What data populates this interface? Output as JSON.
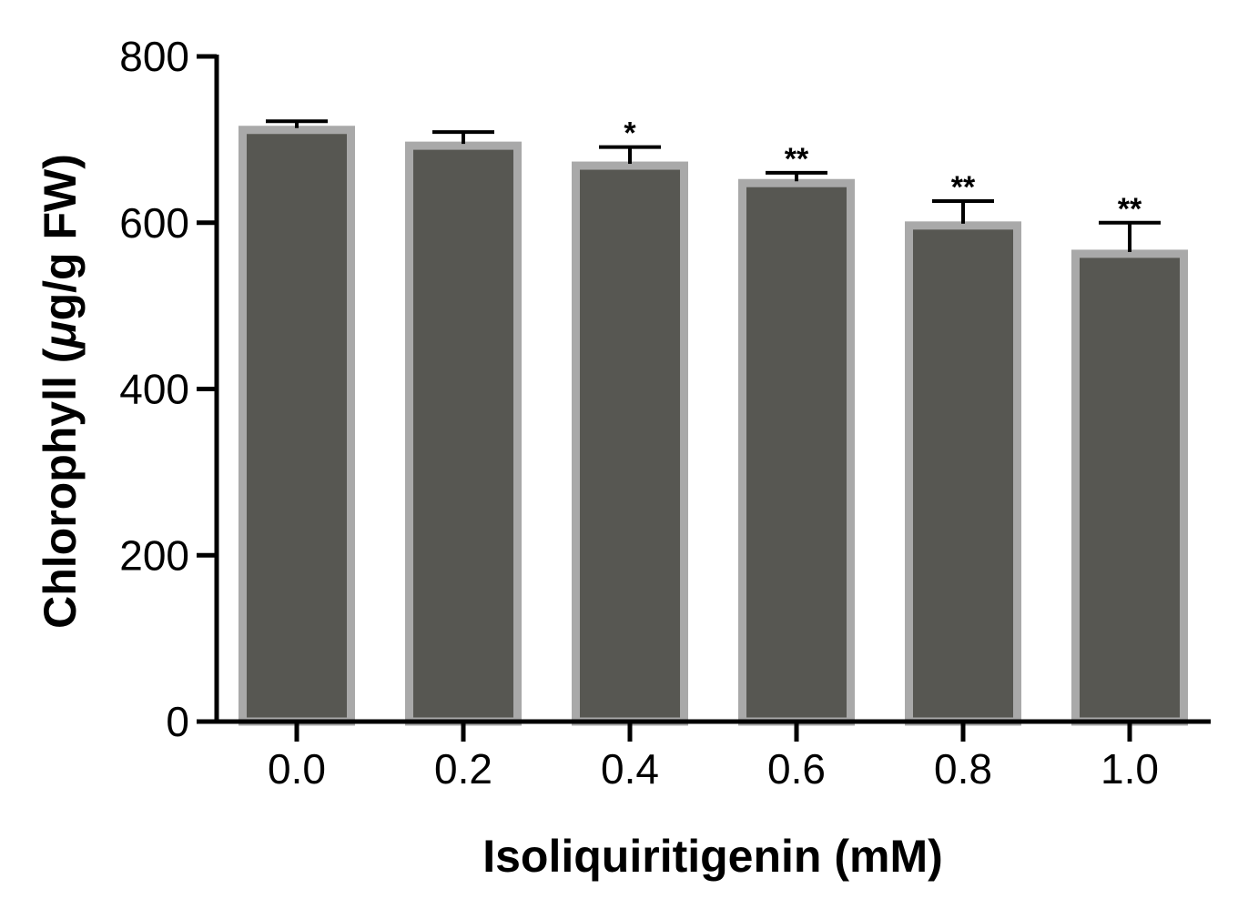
{
  "chart_data": {
    "type": "bar",
    "title": "",
    "xlabel": "Isoliquiritigenin (mM)",
    "ylabel_prefix": "Chlorophyll (",
    "ylabel_mu": "μ",
    "ylabel_suffix": "g/g FW)",
    "categories": [
      "0.0",
      "0.2",
      "0.4",
      "0.6",
      "0.8",
      "1.0"
    ],
    "values": [
      716,
      697,
      673,
      652,
      601,
      567
    ],
    "errors": [
      6,
      12,
      18,
      8,
      25,
      33
    ],
    "significance": [
      "",
      "",
      "*",
      "**",
      "**",
      "**"
    ],
    "ylim": [
      0,
      800
    ],
    "yticks": [
      "0",
      "200",
      "400",
      "600",
      "800"
    ],
    "grid": false,
    "legend": "none",
    "colors": {
      "bar_fill": "#575752",
      "bar_edge": "#a9a9a9",
      "axis": "#000000"
    }
  }
}
